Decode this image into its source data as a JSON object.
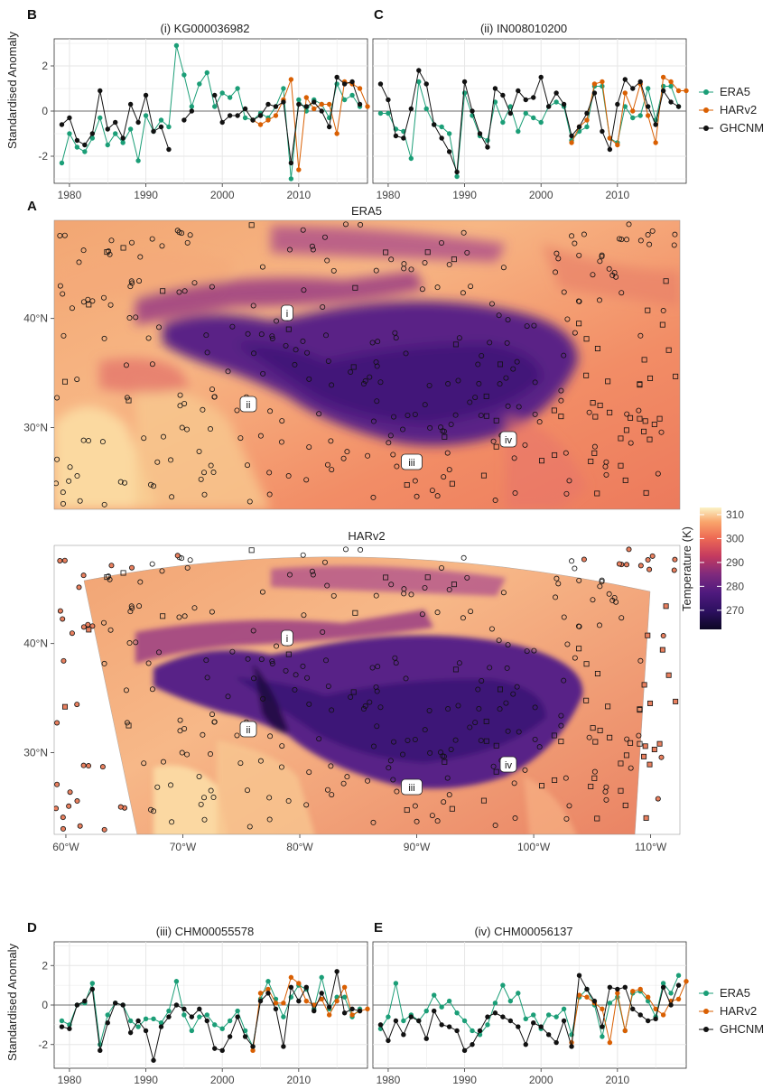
{
  "colors": {
    "ERA5": "#1b9e77",
    "HARv2": "#d95f02",
    "GHCNM": "#111111"
  },
  "legend": {
    "entries": [
      "ERA5",
      "HARv2",
      "GHCNM"
    ]
  },
  "colorbar": {
    "title": "Temperature (K)",
    "ticks": [
      "310",
      "300",
      "290",
      "280",
      "270"
    ],
    "range": [
      262,
      313
    ]
  },
  "map": {
    "panel_label": "A",
    "era5_title": "ERA5",
    "harv2_title": "HARv2",
    "lat_ticks": [
      "40°N",
      "30°N"
    ],
    "lon_ticks": [
      "60°W",
      "70°W",
      "80°W",
      "90°W",
      "100°W",
      "110°W"
    ],
    "lat_range": [
      22.5,
      49
    ],
    "lon_range": [
      59,
      112.5
    ],
    "station_labels": [
      "i",
      "ii",
      "iii",
      "iv"
    ]
  },
  "chart_data": [
    {
      "type": "line",
      "panel": "B",
      "title": "(i) KG000036982",
      "ylabel": "Standardised Anomaly",
      "xlim": [
        1978,
        2019
      ],
      "ylim": [
        -3.2,
        3.2
      ],
      "x_ticks": [
        "1980",
        "1990",
        "2000",
        "2010"
      ],
      "y_ticks": [
        "2",
        "0",
        "-2"
      ],
      "series": [
        {
          "name": "ERA5",
          "x_start": 1979,
          "values": [
            -2.3,
            -1.0,
            -1.6,
            -1.8,
            -1.2,
            -0.3,
            -1.5,
            -1.0,
            -1.4,
            -0.8,
            -2.2,
            -0.2,
            -0.9,
            -0.4,
            -0.7,
            2.9,
            1.6,
            0.2,
            1.2,
            1.7,
            0.2,
            0.8,
            0.6,
            1.0,
            -0.3,
            -0.4,
            -0.1,
            -0.3,
            0.2,
            1.0,
            -3.0,
            0.5,
            0.0,
            0.5,
            0.3,
            -0.3,
            1.2,
            0.5,
            0.7,
            0.2
          ]
        },
        {
          "name": "HARv2",
          "x_start": 2004,
          "values": [
            -0.4,
            -0.6,
            -0.4,
            -0.2,
            0.5,
            1.4,
            -2.6,
            0.6,
            0.1,
            0.3,
            0.3,
            -1.0,
            1.3,
            1.2,
            1.0,
            0.2
          ]
        },
        {
          "name": "GHCNM",
          "x_start": 1979,
          "values": [
            -0.6,
            -0.3,
            -1.3,
            -1.5,
            -1.0,
            0.9,
            -0.8,
            -0.5,
            -1.2,
            0.3,
            -0.5,
            0.7,
            -0.9,
            -0.7,
            -1.7,
            null,
            -0.4,
            0.0,
            null,
            null,
            0.7,
            -0.5,
            -0.2,
            -0.2,
            0.1,
            -0.4,
            -0.2,
            0.3,
            0.2,
            0.4,
            -2.3,
            0.3,
            0.2,
            0.4,
            0.0,
            -0.7,
            1.5,
            1.2,
            1.3,
            0.3
          ]
        }
      ]
    },
    {
      "type": "line",
      "panel": "C",
      "title": "(ii) IN008010200",
      "ylabel": "",
      "xlim": [
        1978,
        2019
      ],
      "ylim": [
        -3.2,
        3.2
      ],
      "x_ticks": [
        "1980",
        "1990",
        "2000",
        "2010"
      ],
      "y_ticks": [],
      "series": [
        {
          "name": "ERA5",
          "x_start": 1979,
          "values": [
            -0.1,
            -0.1,
            -0.8,
            -0.9,
            -2.1,
            1.3,
            0.1,
            -0.6,
            -0.7,
            -1.0,
            -2.9,
            0.8,
            -0.2,
            -1.1,
            -1.3,
            0.4,
            -0.5,
            0.2,
            -0.9,
            -0.1,
            -0.3,
            -0.5,
            0.2,
            0.4,
            0.2,
            -1.3,
            -0.9,
            -0.7,
            1.1,
            1.1,
            -1.2,
            -1.4,
            0.2,
            -0.3,
            -0.2,
            1.0,
            -0.4,
            1.1,
            1.1,
            0.2
          ]
        },
        {
          "name": "HARv2",
          "x_start": 2004,
          "values": [
            -1.4,
            -0.7,
            -0.4,
            1.2,
            1.3,
            -1.2,
            -1.5,
            0.8,
            0.0,
            1.2,
            -0.2,
            -1.4,
            1.5,
            1.3,
            0.9,
            0.9
          ]
        },
        {
          "name": "GHCNM",
          "x_start": 1979,
          "values": [
            1.2,
            0.5,
            -1.1,
            -1.2,
            0.1,
            1.8,
            1.2,
            -0.6,
            -1.2,
            -1.8,
            -2.7,
            1.3,
            0.0,
            -1.0,
            -1.6,
            1.0,
            0.7,
            -0.1,
            0.9,
            0.5,
            0.6,
            1.5,
            0.2,
            0.8,
            0.3,
            -1.1,
            -0.7,
            -0.1,
            0.8,
            -0.9,
            -1.7,
            0.3,
            1.4,
            1.0,
            1.3,
            0.2,
            -0.6,
            0.9,
            0.4,
            0.2
          ]
        }
      ]
    },
    {
      "type": "line",
      "panel": "D",
      "title": "(iii) CHM00055578",
      "ylabel": "Standardised Anomaly",
      "xlim": [
        1978,
        2019
      ],
      "ylim": [
        -3.2,
        3.2
      ],
      "x_ticks": [
        "1980",
        "1990",
        "2000",
        "2010"
      ],
      "y_ticks": [
        "2",
        "0",
        "-2"
      ],
      "series": [
        {
          "name": "ERA5",
          "x_start": 1979,
          "values": [
            -0.8,
            -1.0,
            0.0,
            0.1,
            1.1,
            -2.0,
            -0.5,
            0.1,
            0.0,
            -0.8,
            -1.1,
            -0.7,
            -0.7,
            -0.9,
            -0.3,
            1.2,
            -0.5,
            -1.3,
            -0.6,
            -0.5,
            -1.0,
            -1.2,
            -0.8,
            -0.3,
            -1.3,
            -2.1,
            0.3,
            1.2,
            0.3,
            -0.6,
            0.4,
            1.0,
            0.8,
            -0.2,
            1.4,
            -0.2,
            0.4,
            0.4,
            -0.6,
            -0.2
          ]
        },
        {
          "name": "HARv2",
          "x_start": 2004,
          "values": [
            -2.3,
            0.6,
            0.8,
            0.1,
            0.1,
            1.4,
            1.1,
            0.2,
            0.0,
            0.3,
            -0.5,
            0.2,
            0.9,
            -0.5,
            -0.3,
            -0.2
          ]
        },
        {
          "name": "GHCNM",
          "x_start": 1979,
          "values": [
            -1.1,
            -1.2,
            0.0,
            0.2,
            0.8,
            -2.3,
            -0.9,
            0.1,
            0.0,
            -1.4,
            -0.8,
            -1.3,
            -2.8,
            -1.1,
            -0.6,
            0.0,
            -0.2,
            -0.6,
            -0.2,
            -0.8,
            -2.2,
            -2.3,
            -1.6,
            -0.6,
            -1.6,
            -2.1,
            0.2,
            0.6,
            -0.2,
            -2.1,
            0.9,
            0.2,
            0.9,
            -0.3,
            0.6,
            -0.1,
            1.7,
            -0.4,
            -0.2,
            -0.3
          ]
        }
      ]
    },
    {
      "type": "line",
      "panel": "E",
      "title": "(iv) CHM00056137",
      "ylabel": "",
      "xlim": [
        1978,
        2019
      ],
      "ylim": [
        -3.2,
        3.2
      ],
      "x_ticks": [
        "1980",
        "1990",
        "2000",
        "2010"
      ],
      "y_ticks": [],
      "series": [
        {
          "name": "ERA5",
          "x_start": 1979,
          "values": [
            -1.2,
            -0.6,
            1.1,
            -0.8,
            -0.5,
            -0.8,
            -0.3,
            0.5,
            -0.1,
            0.2,
            -0.4,
            -0.8,
            -1.3,
            -1.5,
            -1.0,
            0.1,
            1.0,
            0.2,
            0.6,
            -0.7,
            -0.5,
            -1.2,
            -0.5,
            -0.6,
            -0.2,
            -1.5,
            0.4,
            0.8,
            0.0,
            -1.6,
            0.1,
            0.4,
            -1.3,
            0.6,
            0.7,
            0.2,
            -0.6,
            1.1,
            0.6,
            1.5
          ]
        },
        {
          "name": "HARv2",
          "x_start": 2004,
          "values": [
            -1.9,
            0.5,
            0.4,
            0.1,
            -0.2,
            -1.9,
            0.6,
            -1.3,
            0.7,
            0.8,
            0.4,
            -0.2,
            -0.5,
            0.2,
            0.3,
            1.2
          ]
        },
        {
          "name": "GHCNM",
          "x_start": 1979,
          "values": [
            -1.0,
            -1.8,
            -0.8,
            -1.5,
            -0.6,
            -0.8,
            -1.7,
            -0.3,
            -1.0,
            -1.1,
            -1.3,
            -2.3,
            -2.0,
            -1.3,
            -0.6,
            -0.4,
            -0.6,
            -0.8,
            -1.1,
            -2.0,
            -0.9,
            -1.1,
            -1.5,
            -1.9,
            -0.8,
            -2.1,
            1.5,
            0.8,
            0.2,
            -1.1,
            0.9,
            0.8,
            0.9,
            -0.2,
            -0.5,
            -0.8,
            -0.7,
            0.9,
            0.0,
            1.0
          ]
        }
      ]
    }
  ]
}
